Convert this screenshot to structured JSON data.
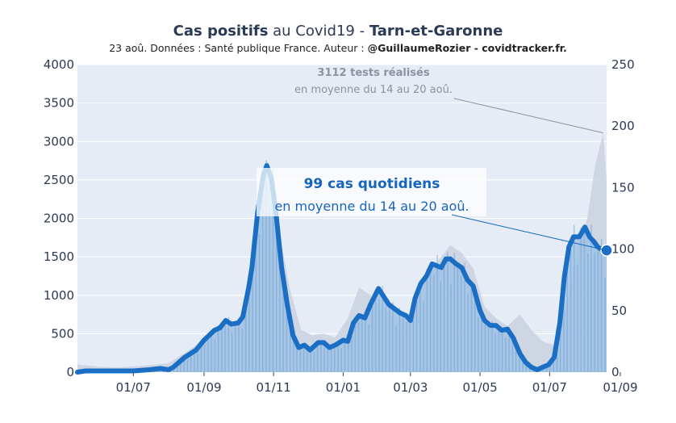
{
  "header": {
    "title_bold1": "Cas positifs",
    "title_mid": " au Covid19 - ",
    "title_bold2": "Tarn-et-Garonne",
    "subtitle_plain": "23 aoû. Données : Santé publique France. Auteur : ",
    "subtitle_bold": "@GuillaumeRozier - covidtracker.fr."
  },
  "annotations": {
    "tests_line1": "3112 tests réalisés",
    "tests_line2": "en moyenne du 14 au 20 aoû.",
    "cases_line1": "99 cas quotidiens",
    "cases_line2": "en moyenne du 14 au 20 aoû."
  },
  "colors": {
    "plot_bg": "#e6ecf5",
    "tests_fill": "#c9d2df",
    "cases_area": "#9dc1e3",
    "cases_bars": "#6fa3d6",
    "cases_line": "#1a6fc4",
    "tick_text": "#2b3a55"
  },
  "chart_data": {
    "type": "line",
    "x_ticks": [
      "01/07",
      "01/09",
      "01/11",
      "01/01",
      "01/03",
      "01/05",
      "01/07",
      "01/09"
    ],
    "y_left_ticks": [
      "0",
      "500",
      "1000",
      "1500",
      "2000",
      "2500",
      "3000",
      "3500",
      "4000"
    ],
    "y_right_ticks": [
      "0",
      "50",
      "100",
      "150",
      "200",
      "250"
    ],
    "y_left_range": [
      0,
      4000
    ],
    "y_right_range": [
      0,
      250
    ],
    "x_start": "2020-05-13",
    "x_end": "2021-08-20",
    "grid": true,
    "series": [
      {
        "axis": "left",
        "dates": [
          "2020-05-13",
          "2020-06-01",
          "2020-06-15",
          "2020-07-01",
          "2020-07-15",
          "2020-08-01",
          "2020-08-15",
          "2020-09-01",
          "2020-09-15",
          "2020-10-01",
          "2020-10-10",
          "2020-10-15",
          "2020-10-22",
          "2020-10-28",
          "2020-11-05",
          "2020-11-15",
          "2020-11-25",
          "2020-12-05",
          "2020-12-15",
          "2020-12-25",
          "2021-01-05",
          "2021-01-15",
          "2021-01-25",
          "2021-02-05",
          "2021-02-15",
          "2021-02-25",
          "2021-03-05",
          "2021-03-15",
          "2021-03-25",
          "2021-04-05",
          "2021-04-15",
          "2021-04-25",
          "2021-05-05",
          "2021-05-15",
          "2021-05-25",
          "2021-06-05",
          "2021-06-15",
          "2021-06-25",
          "2021-07-05",
          "2021-07-12",
          "2021-07-20",
          "2021-07-27",
          "2021-08-03",
          "2021-08-10",
          "2021-08-17",
          "2021-08-20"
        ],
        "values": [
          100,
          70,
          60,
          75,
          90,
          120,
          250,
          420,
          560,
          580,
          850,
          1500,
          2250,
          2350,
          1900,
          1100,
          550,
          480,
          500,
          450,
          700,
          1100,
          1000,
          800,
          750,
          650,
          1000,
          1200,
          1450,
          1650,
          1550,
          1350,
          850,
          700,
          600,
          750,
          550,
          400,
          350,
          600,
          1200,
          1700,
          2000,
          2700,
          3112,
          2500
        ]
      },
      {
        "axis": "right",
        "dates": [
          "2020-05-13",
          "2020-05-20",
          "2020-06-01",
          "2020-06-15",
          "2020-07-01",
          "2020-07-15",
          "2020-07-25",
          "2020-08-01",
          "2020-08-05",
          "2020-08-15",
          "2020-08-25",
          "2020-09-01",
          "2020-09-10",
          "2020-09-15",
          "2020-09-20",
          "2020-09-25",
          "2020-10-01",
          "2020-10-05",
          "2020-10-10",
          "2020-10-13",
          "2020-10-18",
          "2020-10-23",
          "2020-10-26",
          "2020-10-30",
          "2020-11-03",
          "2020-11-08",
          "2020-11-13",
          "2020-11-18",
          "2020-11-23",
          "2020-11-28",
          "2020-12-03",
          "2020-12-10",
          "2020-12-15",
          "2020-12-20",
          "2020-12-25",
          "2021-01-01",
          "2021-01-05",
          "2021-01-10",
          "2021-01-15",
          "2021-01-20",
          "2021-01-25",
          "2021-02-01",
          "2021-02-10",
          "2021-02-20",
          "2021-02-25",
          "2021-03-01",
          "2021-03-05",
          "2021-03-10",
          "2021-03-15",
          "2021-03-20",
          "2021-03-28",
          "2021-04-01",
          "2021-04-05",
          "2021-04-10",
          "2021-04-15",
          "2021-04-20",
          "2021-04-25",
          "2021-05-01",
          "2021-05-05",
          "2021-05-10",
          "2021-05-15",
          "2021-05-20",
          "2021-05-25",
          "2021-05-30",
          "2021-06-05",
          "2021-06-10",
          "2021-06-15",
          "2021-06-20",
          "2021-06-25",
          "2021-06-30",
          "2021-07-05",
          "2021-07-10",
          "2021-07-14",
          "2021-07-18",
          "2021-07-22",
          "2021-07-27",
          "2021-08-01",
          "2021-08-05",
          "2021-08-09",
          "2021-08-12",
          "2021-08-15",
          "2021-08-17",
          "2021-08-20"
        ],
        "values": [
          0,
          1,
          1,
          1,
          1,
          2,
          3,
          2,
          4,
          12,
          18,
          26,
          34,
          36,
          42,
          39,
          40,
          45,
          68,
          85,
          130,
          160,
          168,
          158,
          130,
          85,
          55,
          30,
          20,
          22,
          18,
          24,
          24,
          20,
          22,
          26,
          25,
          40,
          46,
          44,
          55,
          68,
          55,
          48,
          46,
          42,
          60,
          72,
          78,
          88,
          85,
          92,
          92,
          88,
          85,
          75,
          70,
          50,
          42,
          38,
          38,
          34,
          35,
          28,
          15,
          8,
          4,
          2,
          4,
          6,
          12,
          40,
          78,
          102,
          110,
          110,
          118,
          110,
          106,
          102,
          100,
          99,
          99
        ]
      }
    ]
  }
}
